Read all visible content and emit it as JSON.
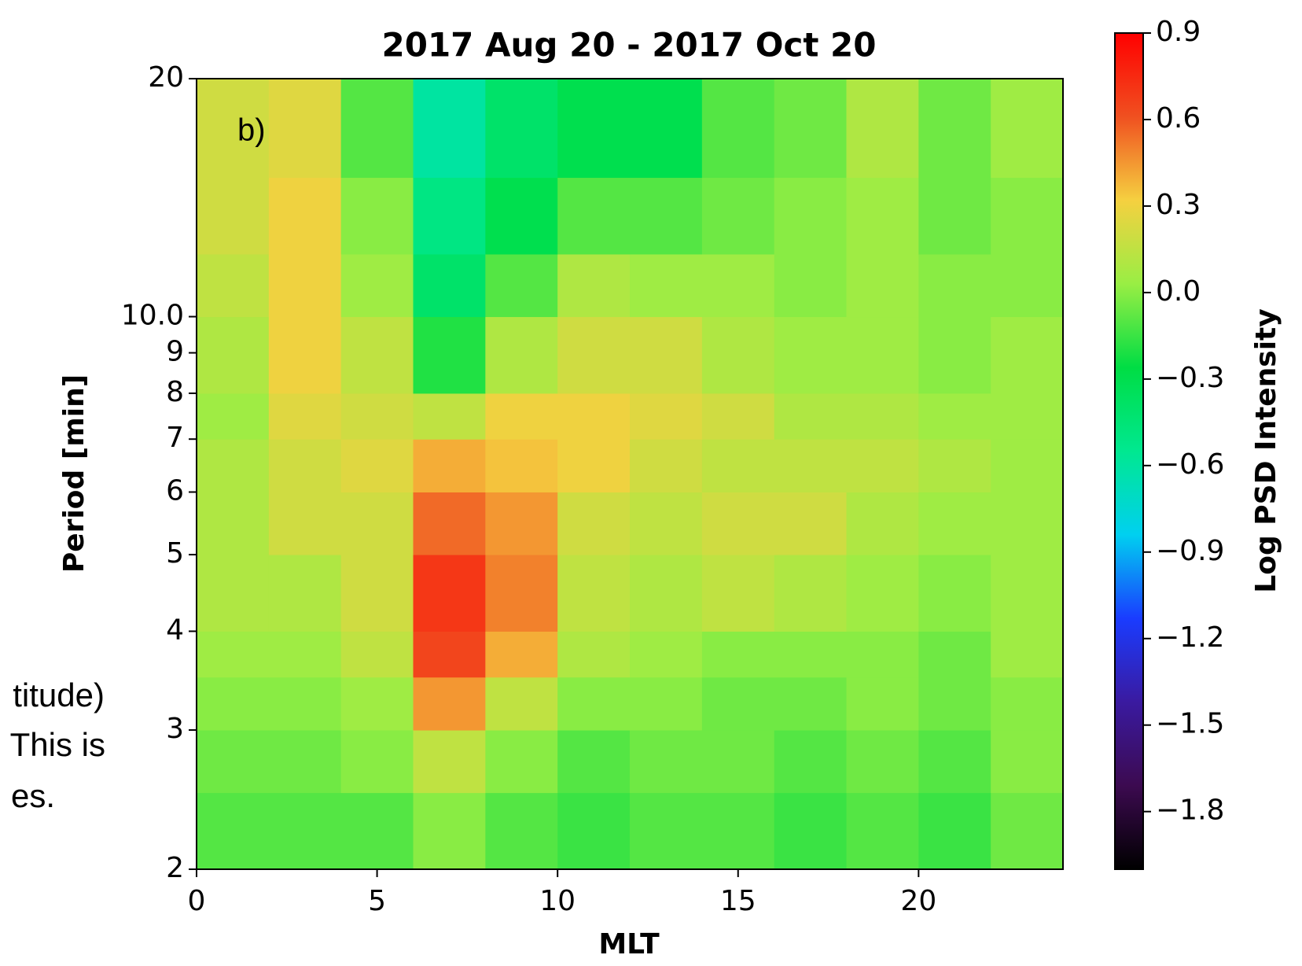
{
  "chart_data": {
    "type": "heatmap",
    "title": "2017 Aug 20 - 2017 Oct 20",
    "panel_label": "b)",
    "xlabel": "MLT",
    "ylabel": "Period [min]",
    "colorbar_label": "Log PSD Intensity",
    "side_text": [
      "titude)",
      "This is",
      "es."
    ],
    "xlim": [
      0,
      24
    ],
    "xticks": [
      0,
      5,
      10,
      15,
      20
    ],
    "ylim": [
      2,
      20
    ],
    "yscale": "log",
    "yticks": [
      2,
      3,
      4,
      5,
      6,
      7,
      8,
      9,
      {
        "value": 10,
        "label": "10.0"
      },
      20
    ],
    "x_bins": [
      0,
      2,
      4,
      6,
      8,
      10,
      12,
      14,
      16,
      18,
      20,
      22,
      24
    ],
    "y_bins": [
      2,
      2.5,
      3,
      3.5,
      4,
      5,
      6,
      7,
      8,
      10,
      12,
      15,
      20
    ],
    "z": [
      [
        -0.1,
        -0.1,
        -0.1,
        0,
        -0.1,
        -0.15,
        -0.1,
        -0.1,
        -0.15,
        -0.1,
        -0.15,
        -0.05
      ],
      [
        -0.05,
        -0.05,
        0,
        0.15,
        0,
        -0.1,
        -0.05,
        -0.05,
        -0.1,
        -0.05,
        -0.1,
        0
      ],
      [
        0,
        0,
        0.05,
        0.45,
        0.15,
        0,
        0,
        -0.05,
        -0.05,
        0,
        -0.05,
        0
      ],
      [
        0.05,
        0.05,
        0.15,
        0.65,
        0.4,
        0.1,
        0.05,
        0,
        0,
        0,
        -0.05,
        0.05
      ],
      [
        0.1,
        0.1,
        0.2,
        0.7,
        0.5,
        0.15,
        0.1,
        0.15,
        0.1,
        0.05,
        0,
        0.05
      ],
      [
        0.1,
        0.2,
        0.2,
        0.55,
        0.45,
        0.2,
        0.15,
        0.2,
        0.2,
        0.1,
        0.05,
        0.05
      ],
      [
        0.1,
        0.2,
        0.25,
        0.4,
        0.35,
        0.3,
        0.2,
        0.15,
        0.15,
        0.15,
        0.1,
        0.05
      ],
      [
        0.05,
        0.25,
        0.2,
        0.15,
        0.3,
        0.3,
        0.25,
        0.2,
        0.1,
        0.1,
        0.05,
        0.05
      ],
      [
        0.1,
        0.3,
        0.15,
        -0.2,
        0.1,
        0.2,
        0.2,
        0.1,
        0.05,
        0.05,
        0,
        0.05
      ],
      [
        0.15,
        0.3,
        0.05,
        -0.4,
        -0.1,
        0.1,
        0.05,
        0.05,
        0,
        0.05,
        0,
        0
      ],
      [
        0.2,
        0.3,
        0,
        -0.5,
        -0.3,
        -0.1,
        -0.1,
        -0.05,
        0,
        0.05,
        -0.05,
        0
      ],
      [
        0.2,
        0.25,
        -0.1,
        -0.6,
        -0.4,
        -0.3,
        -0.3,
        -0.1,
        -0.05,
        0.1,
        -0.05,
        0.05
      ]
    ],
    "clim": [
      -2.0,
      0.9
    ],
    "cticks": [
      0.9,
      0.6,
      0.3,
      {
        "value": 0,
        "label": "0.0"
      },
      {
        "value": -0.3,
        "label": "−0.3"
      },
      {
        "value": -0.6,
        "label": "−0.6"
      },
      {
        "value": -0.9,
        "label": "−0.9"
      },
      {
        "value": -1.2,
        "label": "−1.2"
      },
      {
        "value": -1.5,
        "label": "−1.5"
      },
      {
        "value": -1.8,
        "label": "−1.8"
      }
    ],
    "colormap": [
      "#000000",
      "#3c0a50",
      "#3a1aa0",
      "#1a3cff",
      "#00d0f0",
      "#00e890",
      "#00dd44",
      "#99ee44",
      "#f5d040",
      "#f05020",
      "#ff0000"
    ]
  }
}
